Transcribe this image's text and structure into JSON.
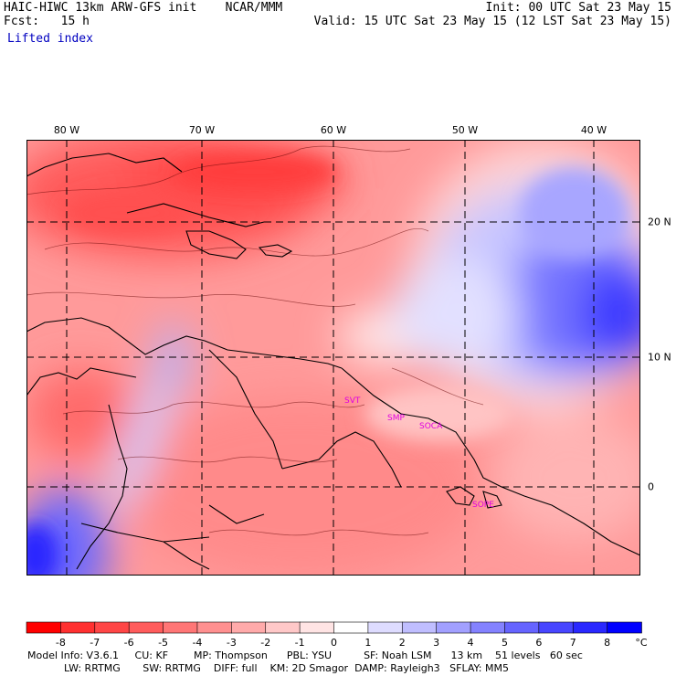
{
  "header": {
    "model_line": "HAIC-HIWC 13km ARW-GFS init    NCAR/MMM",
    "forecast_line": "Fcst:   15 h",
    "field_name": "Lifted index",
    "init_line": "Init: 00 UTC Sat 23 May 15",
    "valid_line": "Valid: 15 UTC Sat 23 May 15 (12 LST Sat 23 May 15)"
  },
  "map": {
    "longitude_labels": [
      "80 W",
      "70 W",
      "60 W",
      "50 W",
      "40 W"
    ],
    "latitude_labels": [
      "20 N",
      "10 N",
      "0"
    ],
    "stations": [
      "SVT",
      "SMP",
      "SOCA",
      "SOPE"
    ]
  },
  "colorbar": {
    "labels": [
      "-8",
      "-7",
      "-6",
      "-5",
      "-4",
      "-3",
      "-2",
      "-1",
      "0",
      "1",
      "2",
      "3",
      "4",
      "5",
      "6",
      "7",
      "8"
    ],
    "unit": "°C",
    "colors": [
      "#ff0000",
      "#ff3030",
      "#ff4646",
      "#ff5c5c",
      "#ff7676",
      "#ff9090",
      "#ffaaaa",
      "#ffc8c8",
      "#ffe4e4",
      "#ffffff",
      "#dedcff",
      "#c0beff",
      "#a2a0ff",
      "#8482ff",
      "#6664ff",
      "#4846ff",
      "#2a28ff",
      "#0000ff"
    ]
  },
  "footer": {
    "line1": "Model Info: V3.6.1     CU: KF        MP: Thompson      PBL: YSU          SF: Noah LSM      13 km    51 levels   60 sec",
    "line2": "LW: RRTMG       SW: RRTMG    DIFF: full    KM: 2D Smagor  DAMP: Rayleigh3   SFLAY: MM5"
  }
}
